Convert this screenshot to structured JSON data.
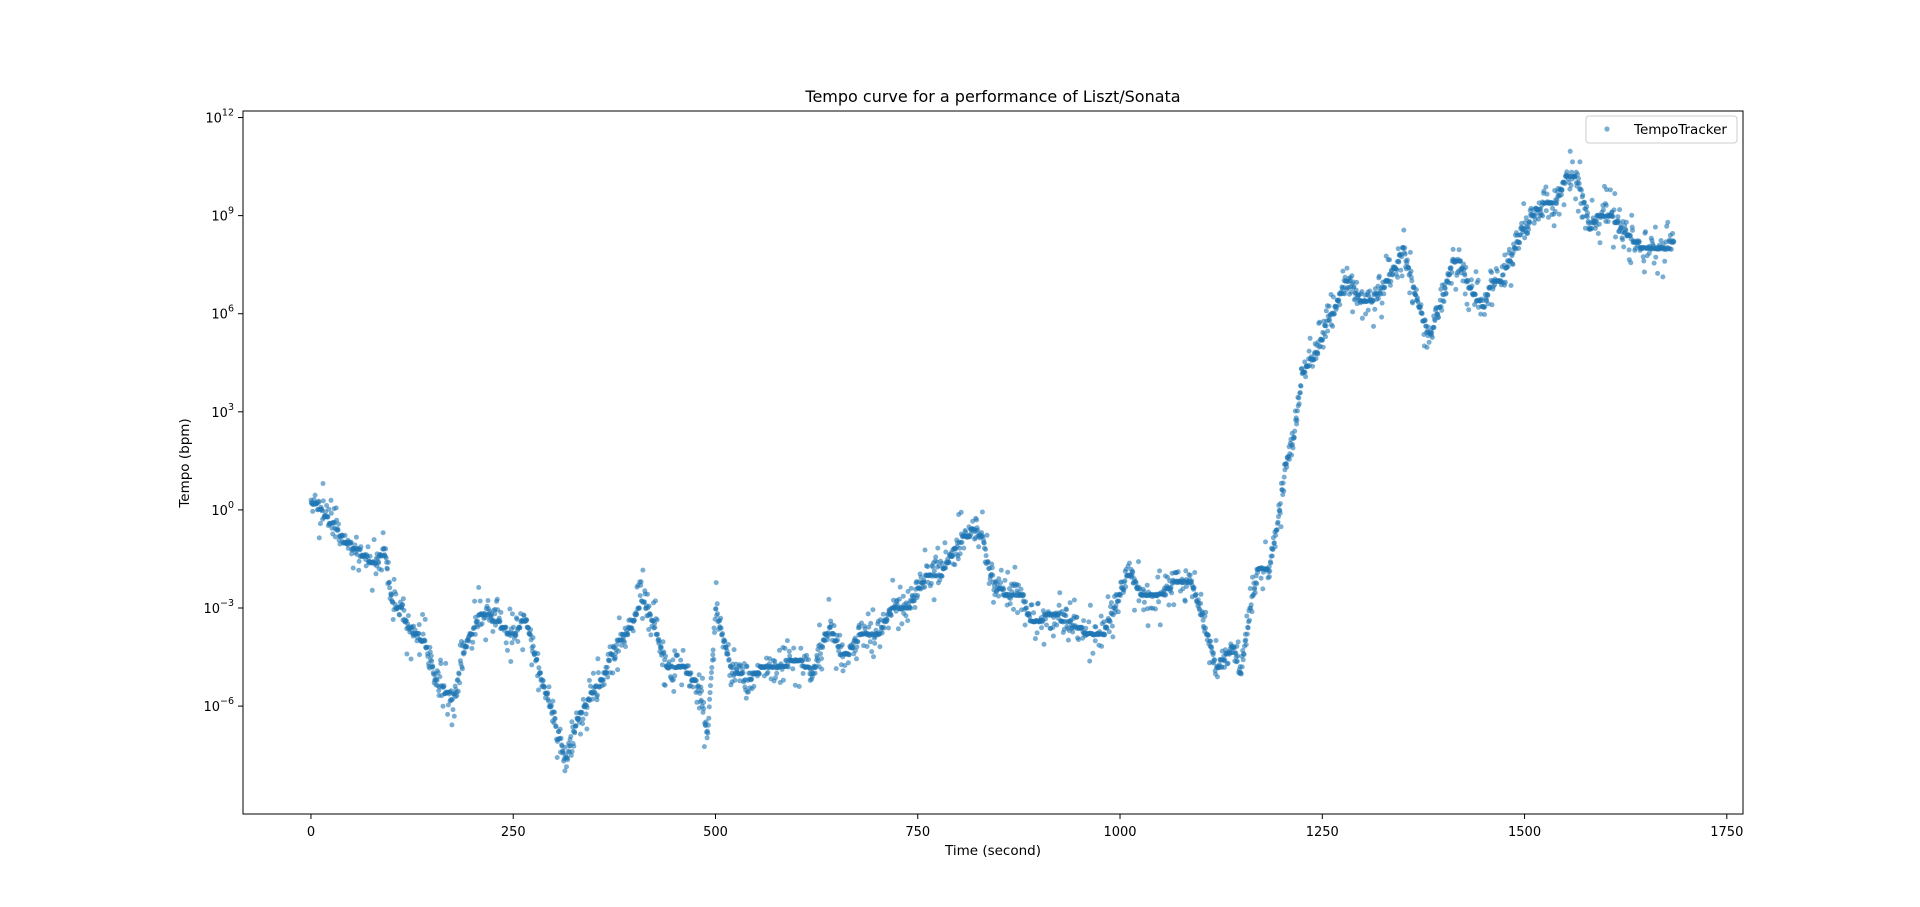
{
  "chart_data": {
    "type": "scatter",
    "title": "Tempo curve for a performance of Liszt/Sonata",
    "xlabel": "Time (second)",
    "ylabel": "Tempo (bpm)",
    "xlim": [
      -84,
      1770
    ],
    "ylim_log10": [
      -9.3,
      12.2
    ],
    "yscale": "log",
    "x_ticks": [
      {
        "value": 0,
        "label": "0"
      },
      {
        "value": 250,
        "label": "250"
      },
      {
        "value": 500,
        "label": "500"
      },
      {
        "value": 750,
        "label": "750"
      },
      {
        "value": 1000,
        "label": "1000"
      },
      {
        "value": 1250,
        "label": "1250"
      },
      {
        "value": 1500,
        "label": "1500"
      },
      {
        "value": 1750,
        "label": "1750"
      }
    ],
    "y_ticks": [
      {
        "exp": 12,
        "base": "10",
        "sup": "12"
      },
      {
        "exp": 9,
        "base": "10",
        "sup": "9"
      },
      {
        "exp": 6,
        "base": "10",
        "sup": "6"
      },
      {
        "exp": 3,
        "base": "10",
        "sup": "3"
      },
      {
        "exp": 0,
        "base": "10",
        "sup": "0"
      },
      {
        "exp": -3,
        "base": "10",
        "sup": "−3"
      },
      {
        "exp": -6,
        "base": "10",
        "sup": "−6"
      }
    ],
    "grid": false,
    "legend_position": "top-right",
    "marker_color": "#1f77b4",
    "series": [
      {
        "name": "TempoTracker",
        "trace_log10": [
          [
            0,
            0.3
          ],
          [
            20,
            -0.2
          ],
          [
            40,
            -0.9
          ],
          [
            60,
            -1.3
          ],
          [
            80,
            -1.7
          ],
          [
            90,
            -1.2
          ],
          [
            100,
            -2.7
          ],
          [
            120,
            -3.6
          ],
          [
            140,
            -4.0
          ],
          [
            155,
            -5.2
          ],
          [
            175,
            -5.8
          ],
          [
            190,
            -4.3
          ],
          [
            210,
            -3.1
          ],
          [
            230,
            -3.4
          ],
          [
            250,
            -3.9
          ],
          [
            265,
            -3.3
          ],
          [
            285,
            -5.2
          ],
          [
            300,
            -6.3
          ],
          [
            315,
            -7.7
          ],
          [
            330,
            -6.4
          ],
          [
            345,
            -5.7
          ],
          [
            360,
            -5.2
          ],
          [
            375,
            -4.2
          ],
          [
            395,
            -3.6
          ],
          [
            410,
            -2.7
          ],
          [
            425,
            -3.6
          ],
          [
            440,
            -4.8
          ],
          [
            460,
            -4.8
          ],
          [
            480,
            -5.4
          ],
          [
            490,
            -7.0
          ],
          [
            500,
            -3.0
          ],
          [
            520,
            -4.9
          ],
          [
            540,
            -5.2
          ],
          [
            560,
            -4.8
          ],
          [
            580,
            -4.9
          ],
          [
            600,
            -4.5
          ],
          [
            620,
            -5.0
          ],
          [
            640,
            -3.6
          ],
          [
            660,
            -4.5
          ],
          [
            680,
            -3.8
          ],
          [
            700,
            -3.8
          ],
          [
            720,
            -3.0
          ],
          [
            740,
            -3.0
          ],
          [
            760,
            -2.0
          ],
          [
            780,
            -1.9
          ],
          [
            800,
            -1.0
          ],
          [
            820,
            -0.6
          ],
          [
            830,
            -0.8
          ],
          [
            840,
            -2.0
          ],
          [
            860,
            -2.7
          ],
          [
            880,
            -2.6
          ],
          [
            890,
            -3.5
          ],
          [
            905,
            -3.3
          ],
          [
            920,
            -3.2
          ],
          [
            940,
            -3.5
          ],
          [
            960,
            -3.8
          ],
          [
            980,
            -3.8
          ],
          [
            1000,
            -2.6
          ],
          [
            1010,
            -1.9
          ],
          [
            1030,
            -2.7
          ],
          [
            1050,
            -2.7
          ],
          [
            1070,
            -2.1
          ],
          [
            1090,
            -2.3
          ],
          [
            1100,
            -3.2
          ],
          [
            1120,
            -4.8
          ],
          [
            1140,
            -4.2
          ],
          [
            1150,
            -5.0
          ],
          [
            1160,
            -3.2
          ],
          [
            1170,
            -1.8
          ],
          [
            1185,
            -1.7
          ],
          [
            1195,
            -0.4
          ],
          [
            1205,
            1.4
          ],
          [
            1215,
            2.2
          ],
          [
            1225,
            4.1
          ],
          [
            1235,
            4.6
          ],
          [
            1245,
            4.8
          ],
          [
            1255,
            5.7
          ],
          [
            1265,
            6.1
          ],
          [
            1280,
            7.1
          ],
          [
            1300,
            6.3
          ],
          [
            1320,
            6.6
          ],
          [
            1340,
            7.4
          ],
          [
            1350,
            8.0
          ],
          [
            1360,
            7.0
          ],
          [
            1375,
            5.8
          ],
          [
            1385,
            5.4
          ],
          [
            1400,
            6.7
          ],
          [
            1410,
            7.5
          ],
          [
            1420,
            7.7
          ],
          [
            1430,
            6.9
          ],
          [
            1440,
            6.5
          ],
          [
            1450,
            6.2
          ],
          [
            1460,
            7.1
          ],
          [
            1470,
            7.0
          ],
          [
            1480,
            7.5
          ],
          [
            1490,
            8.1
          ],
          [
            1500,
            8.7
          ],
          [
            1520,
            9.3
          ],
          [
            1540,
            9.5
          ],
          [
            1550,
            10.1
          ],
          [
            1560,
            10.3
          ],
          [
            1570,
            9.8
          ],
          [
            1580,
            8.6
          ],
          [
            1595,
            9.1
          ],
          [
            1610,
            8.9
          ],
          [
            1630,
            8.4
          ],
          [
            1650,
            7.9
          ],
          [
            1670,
            7.9
          ],
          [
            1685,
            8.2
          ]
        ]
      }
    ]
  }
}
